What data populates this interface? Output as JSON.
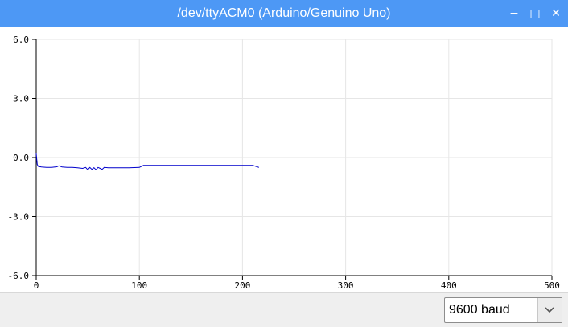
{
  "window": {
    "title": "/dev/ttyACM0 (Arduino/Genuino Uno)",
    "minimize_glyph": "−",
    "maximize_glyph": "□",
    "close_glyph": "✕"
  },
  "baud": {
    "value": "9600 baud",
    "arrow_icon": "chevron-down-icon"
  },
  "colors": {
    "titlebar": "#4d98f5",
    "series": "#0000cc",
    "grid": "#e6e6e6"
  },
  "chart_data": {
    "type": "line",
    "title": "",
    "xlabel": "",
    "ylabel": "",
    "xlim": [
      0,
      500
    ],
    "ylim": [
      -6.0,
      6.0
    ],
    "x_ticks": [
      "0",
      "100",
      "200",
      "300",
      "400",
      "500"
    ],
    "y_ticks": [
      "6.0",
      "3.0",
      "0.0",
      "-3.0",
      "-6.0"
    ],
    "grid": true,
    "legend": "none",
    "series": [
      {
        "values": [
          [
            0,
            0.2
          ],
          [
            1,
            -0.35
          ],
          [
            2,
            -0.45
          ],
          [
            5,
            -0.48
          ],
          [
            10,
            -0.5
          ],
          [
            15,
            -0.5
          ],
          [
            20,
            -0.47
          ],
          [
            22,
            -0.42
          ],
          [
            25,
            -0.48
          ],
          [
            30,
            -0.5
          ],
          [
            35,
            -0.5
          ],
          [
            40,
            -0.52
          ],
          [
            45,
            -0.55
          ],
          [
            48,
            -0.5
          ],
          [
            50,
            -0.62
          ],
          [
            52,
            -0.5
          ],
          [
            54,
            -0.6
          ],
          [
            56,
            -0.52
          ],
          [
            58,
            -0.62
          ],
          [
            60,
            -0.5
          ],
          [
            62,
            -0.55
          ],
          [
            64,
            -0.6
          ],
          [
            66,
            -0.5
          ],
          [
            70,
            -0.52
          ],
          [
            80,
            -0.52
          ],
          [
            90,
            -0.52
          ],
          [
            100,
            -0.5
          ],
          [
            104,
            -0.4
          ],
          [
            110,
            -0.4
          ],
          [
            130,
            -0.4
          ],
          [
            150,
            -0.4
          ],
          [
            170,
            -0.4
          ],
          [
            190,
            -0.4
          ],
          [
            210,
            -0.4
          ],
          [
            213,
            -0.45
          ],
          [
            216,
            -0.5
          ]
        ]
      }
    ]
  }
}
